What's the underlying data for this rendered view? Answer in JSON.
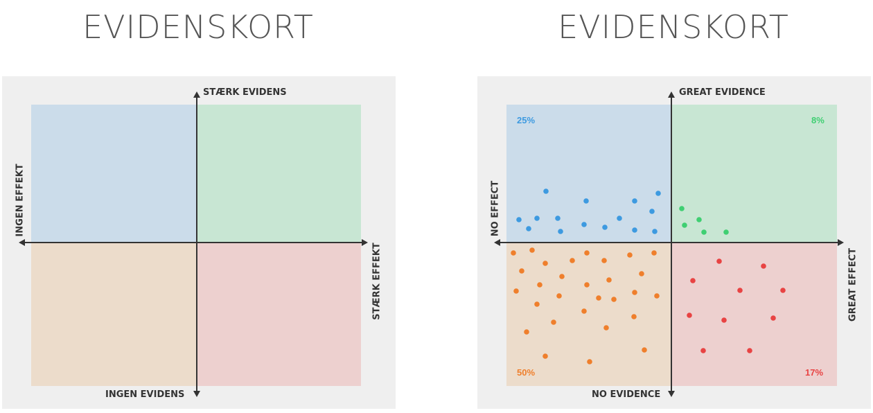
{
  "left": {
    "title": "EVIDENSKORT",
    "top_label": "STÆRK EVIDENS",
    "bottom_label": "INGEN EVIDENS",
    "left_label": "INGEN EFFEKT",
    "right_label": "STÆRK EFFEKT"
  },
  "right": {
    "title": "EVIDENSKORT",
    "top_label": "GREAT EVIDENCE",
    "bottom_label": "NO EVIDENCE",
    "left_label": "NO EFFECT",
    "right_label": "GREAT EFFECT",
    "pct_top_left": "25%",
    "pct_top_right": "8%",
    "pct_bottom_left": "50%",
    "pct_bottom_right": "17%"
  },
  "colors": {
    "top_left": "#cbdcea",
    "top_right": "#c8e6d3",
    "bottom_left": "#ecdccb",
    "bottom_right": "#edd0cf",
    "blue": "#3d9ae0",
    "green": "#3fcf72",
    "orange": "#ef7f2c",
    "red": "#e84343"
  }
}
